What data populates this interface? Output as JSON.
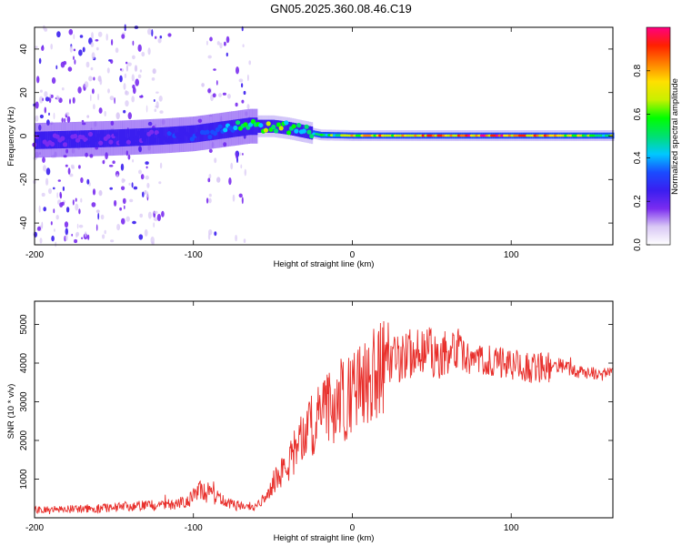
{
  "title": "GN05.2025.360.08.46.C19",
  "colors": {
    "snr_line": "#e8302c",
    "colormap": [
      "#ffffff",
      "#d9c8f5",
      "#7a2cf0",
      "#3a1ef0",
      "#1a4cff",
      "#00c8ff",
      "#00e070",
      "#00ff00",
      "#c8f000",
      "#ffe000",
      "#ff8000",
      "#ff2000",
      "#ff0080"
    ]
  },
  "chart_data": [
    {
      "type": "heatmap",
      "xlabel": "Height of straight line (km)",
      "ylabel": "Frequency (Hz)",
      "xlim": [
        -200,
        164
      ],
      "ylim": [
        -50,
        50
      ],
      "xticks": [
        -200,
        -100,
        0,
        100
      ],
      "xtick_labels": [
        "-200",
        "-100",
        "0",
        "100"
      ],
      "yticks": [
        -40,
        -20,
        0,
        20,
        40
      ],
      "ytick_labels": [
        "-40",
        "-20",
        "0",
        "20",
        "40"
      ],
      "colorbar": {
        "label": "Normalized spectral amplitude",
        "range": [
          0,
          1
        ],
        "ticks": [
          0.0,
          0.2,
          0.4,
          0.6,
          0.8
        ],
        "tick_labels": [
          "0.0",
          "0.2",
          "0.4",
          "0.6",
          "0.8"
        ]
      },
      "ridge": {
        "x": [
          -200,
          -150,
          -120,
          -100,
          -80,
          -65,
          -50,
          -40,
          -30,
          -20,
          0,
          50,
          100,
          164
        ],
        "freq": [
          -2,
          -1,
          0,
          1,
          3,
          4.5,
          4.5,
          3.5,
          2,
          0.5,
          0.2,
          0.2,
          0.2,
          0.2
        ],
        "amplitude": [
          0.2,
          0.22,
          0.25,
          0.3,
          0.38,
          0.55,
          0.6,
          0.55,
          0.45,
          0.5,
          0.75,
          0.85,
          0.9,
          0.55
        ]
      }
    },
    {
      "type": "line",
      "xlabel": "Height of straight line (km)",
      "ylabel": "SNR (10 * v/v)",
      "xlim": [
        -200,
        164
      ],
      "ylim": [
        0,
        5600
      ],
      "xticks": [
        -200,
        -100,
        0,
        100
      ],
      "xtick_labels": [
        "-200",
        "-100",
        "0",
        "100"
      ],
      "yticks": [
        1000,
        2000,
        3000,
        4000,
        5000
      ],
      "ytick_labels": [
        "1000",
        "2000",
        "3000",
        "4000",
        "5000"
      ],
      "series": [
        {
          "x": [
            -200,
            -180,
            -160,
            -140,
            -120,
            -110,
            -100,
            -95,
            -90,
            -85,
            -80,
            -70,
            -60,
            -55,
            -50,
            -45,
            -40,
            -35,
            -30,
            -25,
            -20,
            -15,
            -10,
            -5,
            0,
            5,
            10,
            15,
            20,
            25,
            30,
            40,
            50,
            60,
            70,
            80,
            90,
            100,
            110,
            120,
            130,
            140,
            150,
            164
          ],
          "values": [
            200,
            220,
            250,
            300,
            330,
            380,
            550,
            700,
            620,
            500,
            380,
            300,
            300,
            600,
            900,
            1100,
            1400,
            1800,
            2100,
            2400,
            2600,
            2800,
            3000,
            3000,
            3200,
            3300,
            3500,
            3700,
            3900,
            4000,
            4100,
            4300,
            4300,
            4200,
            4150,
            4100,
            4000,
            3950,
            3900,
            3900,
            3950,
            3800,
            3750,
            3700
          ]
        }
      ]
    }
  ]
}
